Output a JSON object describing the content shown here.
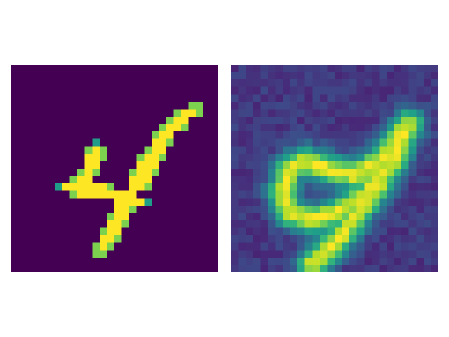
{
  "figure": {
    "colormap": "viridis",
    "grid_size": 28,
    "images": [
      {
        "name": "original-digit",
        "kind": "binary",
        "pixels": [
          "............................",
          "............................",
          "............................",
          "............................",
          "............................",
          "........................##..",
          "......................####..",
          ".....................###....",
          "....................####....",
          "...................###......",
          "...........#.......###......",
          "..........###.....###.......",
          "..........###....####.......",
          "..........##.....###........",
          ".........###....####........",
          "........###.....###.........",
          "......########..###.........",
          "........#########...........",
          "..............#####.........",
          "..............###...........",
          ".............###............",
          ".............###............",
          "............###.............",
          "............###.............",
          "...........###..............",
          "...........##...............",
          "............................",
          "............................"
        ]
      },
      {
        "name": "reconstructed-digit",
        "kind": "blurred",
        "strokes": [
          [
            [
              17,
              15
            ],
            [
              13,
              14
            ],
            [
              10,
              13
            ],
            [
              8,
              14
            ],
            [
              7,
              17
            ],
            [
              8,
              20
            ],
            [
              11,
              21
            ],
            [
              14,
              20
            ],
            [
              16,
              19
            ],
            [
              18,
              18
            ],
            [
              20,
              15
            ],
            [
              22,
              13
            ],
            [
              23,
              10
            ],
            [
              24,
              8
            ]
          ],
          [
            [
              24,
              8
            ],
            [
              22,
              11
            ],
            [
              20,
              16
            ],
            [
              17,
              20
            ],
            [
              15,
              23
            ],
            [
              13,
              25
            ],
            [
              11,
              27
            ]
          ],
          [
            [
              17,
              15
            ],
            [
              20,
              13
            ],
            [
              23,
              10
            ]
          ]
        ]
      }
    ]
  }
}
